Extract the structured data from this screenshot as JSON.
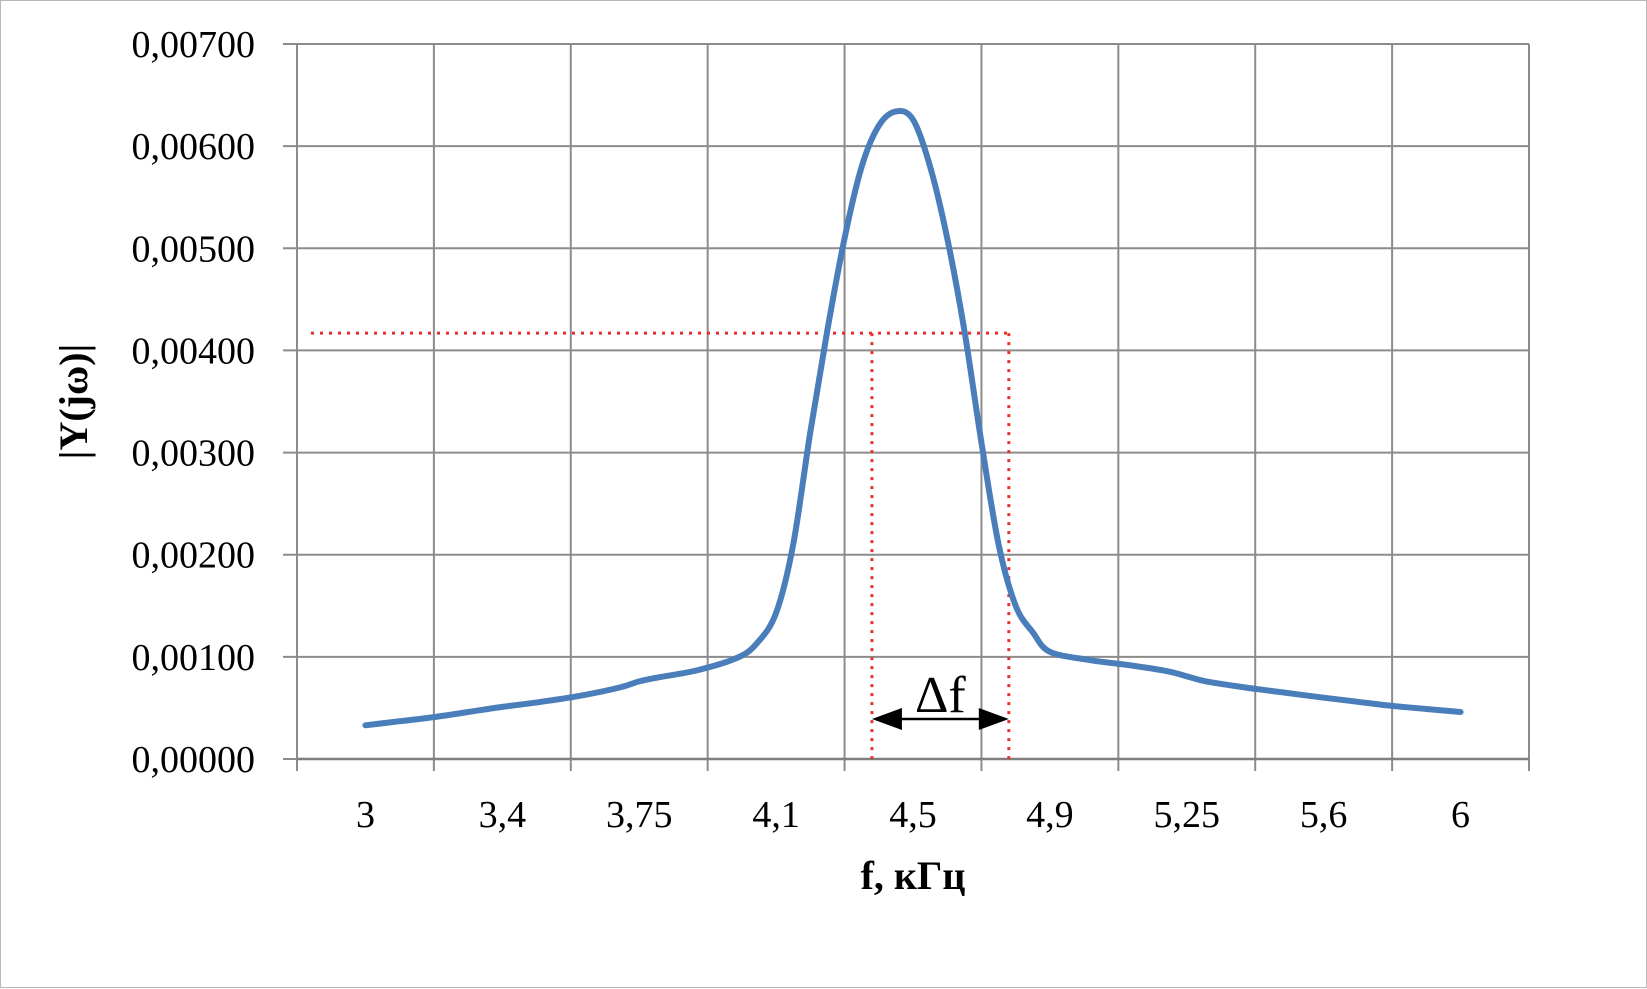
{
  "chart_data": {
    "type": "line",
    "xlabel": "f, кГц",
    "ylabel": "|Y(jω)|",
    "categories": [
      "3",
      "3,4",
      "3,75",
      "4,1",
      "4,5",
      "4,9",
      "5,25",
      "5,6",
      "6"
    ],
    "y_tick_labels": [
      "0,00000",
      "0,00100",
      "0,00200",
      "0,00300",
      "0,00400",
      "0,00500",
      "0,00600",
      "0,00700"
    ],
    "ylim": [
      0,
      0.007
    ],
    "grid": true,
    "legend": "none",
    "series": [
      {
        "color": "#4a7ebb",
        "x": [
          3.0,
          3.1,
          3.2,
          3.3,
          3.4,
          3.5,
          3.6,
          3.7,
          3.75,
          3.8,
          3.9,
          4.0,
          4.05,
          4.1,
          4.15,
          4.2,
          4.25,
          4.3,
          4.35,
          4.4,
          4.45,
          4.5,
          4.55,
          4.6,
          4.65,
          4.7,
          4.75,
          4.8,
          4.85,
          4.9,
          5.0,
          5.1,
          5.2,
          5.25,
          5.3,
          5.4,
          5.5,
          5.6,
          5.7,
          5.8,
          5.9,
          6.0
        ],
        "y": [
          0.00033,
          0.00037,
          0.00041,
          0.00046,
          0.00051,
          0.00056,
          0.00062,
          0.0007,
          0.00076,
          0.0008,
          0.00087,
          0.00099,
          0.00113,
          0.00143,
          0.0021,
          0.0032,
          0.0042,
          0.0051,
          0.0058,
          0.0062,
          0.00634,
          0.00626,
          0.0058,
          0.0051,
          0.0042,
          0.0031,
          0.0021,
          0.0015,
          0.00124,
          0.00105,
          0.00097,
          0.00092,
          0.00086,
          0.00081,
          0.00076,
          0.0007,
          0.00065,
          0.0006,
          0.00056,
          0.00052,
          0.00049,
          0.00046
        ]
      }
    ],
    "annotations": {
      "bandwidth_label": "Δf",
      "bandwidth_level": 0.00417,
      "f_low": 4.38,
      "f_high": 4.78,
      "line_color": "#e8312f"
    }
  }
}
